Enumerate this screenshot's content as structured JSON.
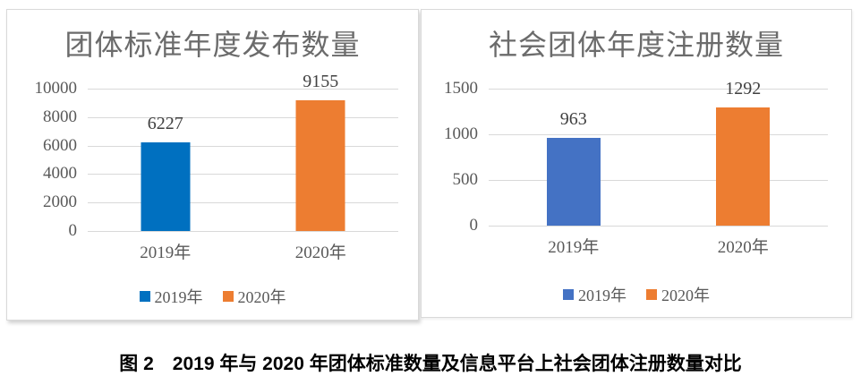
{
  "caption": "图 2　2019 年与 2020 年团体标准数量及信息平台上社会团体注册数量对比",
  "colors": {
    "left_chart_2019_bar": "#0070C0",
    "right_chart_2019_bar": "#4472C4",
    "2020_bar": "#ED7D31",
    "gridline": "#D9D9D9",
    "axis_text": "#595959",
    "title_text": "#6B6B6B",
    "panel_border": "#D9D9D9",
    "caption_text": "#000000"
  },
  "chart_data": [
    {
      "type": "bar",
      "title": "团体标准年度发布数量",
      "categories": [
        "2019年",
        "2020年"
      ],
      "values": [
        6227,
        9155
      ],
      "value_labels": [
        "6227",
        "9155"
      ],
      "bar_colors": [
        "#0070C0",
        "#ED7D31"
      ],
      "legend": [
        "2019年",
        "2020年"
      ],
      "legend_position": "bottom",
      "yticks": [
        0,
        2000,
        4000,
        6000,
        8000,
        10000
      ],
      "ylim": [
        0,
        10000
      ],
      "grid": true,
      "xlabel": "",
      "ylabel": ""
    },
    {
      "type": "bar",
      "title": "社会团体年度注册数量",
      "categories": [
        "2019年",
        "2020年"
      ],
      "values": [
        963,
        1292
      ],
      "value_labels": [
        "963",
        "1292"
      ],
      "bar_colors": [
        "#4472C4",
        "#ED7D31"
      ],
      "legend": [
        "2019年",
        "2020年"
      ],
      "legend_position": "bottom",
      "yticks": [
        0,
        500,
        1000,
        1500
      ],
      "ylim": [
        0,
        1500
      ],
      "grid": true,
      "xlabel": "",
      "ylabel": ""
    }
  ]
}
